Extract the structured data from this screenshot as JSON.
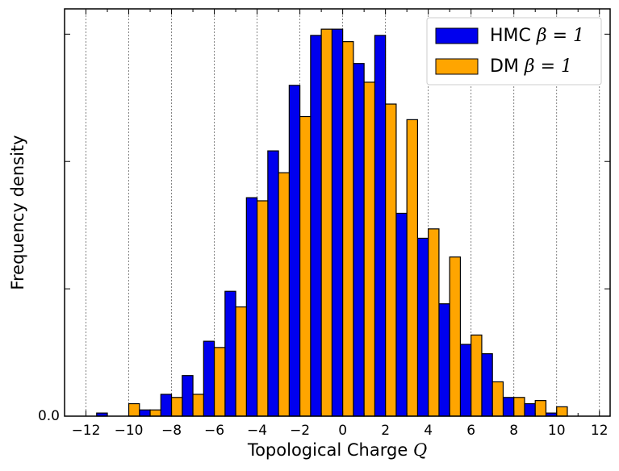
{
  "chart_data": {
    "type": "bar",
    "xlabel": "Topological Charge",
    "xlabel_var": "Q",
    "ylabel": "Frequency density",
    "xlim": [
      -13,
      12.5
    ],
    "ylim": [
      0,
      0.1305
    ],
    "x_ticks": [
      -12,
      -10,
      -8,
      -6,
      -4,
      -2,
      0,
      2,
      4,
      6,
      8,
      10,
      12
    ],
    "x_tick_labels": [
      "−12",
      "−10",
      "−8",
      "−6",
      "−4",
      "−2",
      "0",
      "2",
      "4",
      "6",
      "8",
      "10",
      "12"
    ],
    "y_tick_label": "0.0",
    "grid": "vertical dotted",
    "legend_position": "top-right",
    "bin_width": 1,
    "series": [
      {
        "name": "HMC",
        "beta_label": "β = 1",
        "color": "#0000ee",
        "x": [
          -11,
          -10,
          -9,
          -8,
          -7,
          -6,
          -5,
          -4,
          -3,
          -2,
          -1,
          0,
          1,
          2,
          3,
          4,
          5,
          6,
          7,
          8,
          9,
          10
        ],
        "values": [
          0.001,
          0.0,
          0.002,
          0.007,
          0.013,
          0.024,
          0.04,
          0.07,
          0.085,
          0.106,
          0.122,
          0.124,
          0.113,
          0.122,
          0.065,
          0.057,
          0.036,
          0.023,
          0.02,
          0.006,
          0.004,
          0.001
        ]
      },
      {
        "name": "DM",
        "beta_label": "β = 1",
        "color": "#ffa500",
        "x": [
          -11,
          -10,
          -9,
          -8,
          -7,
          -6,
          -5,
          -4,
          -3,
          -2,
          -1,
          0,
          1,
          2,
          3,
          4,
          5,
          6,
          7,
          8,
          9,
          10
        ],
        "values": [
          0.0,
          0.004,
          0.002,
          0.006,
          0.007,
          0.022,
          0.035,
          0.069,
          0.078,
          0.096,
          0.124,
          0.12,
          0.107,
          0.1,
          0.095,
          0.06,
          0.051,
          0.026,
          0.011,
          0.006,
          0.005,
          0.003
        ]
      }
    ]
  }
}
